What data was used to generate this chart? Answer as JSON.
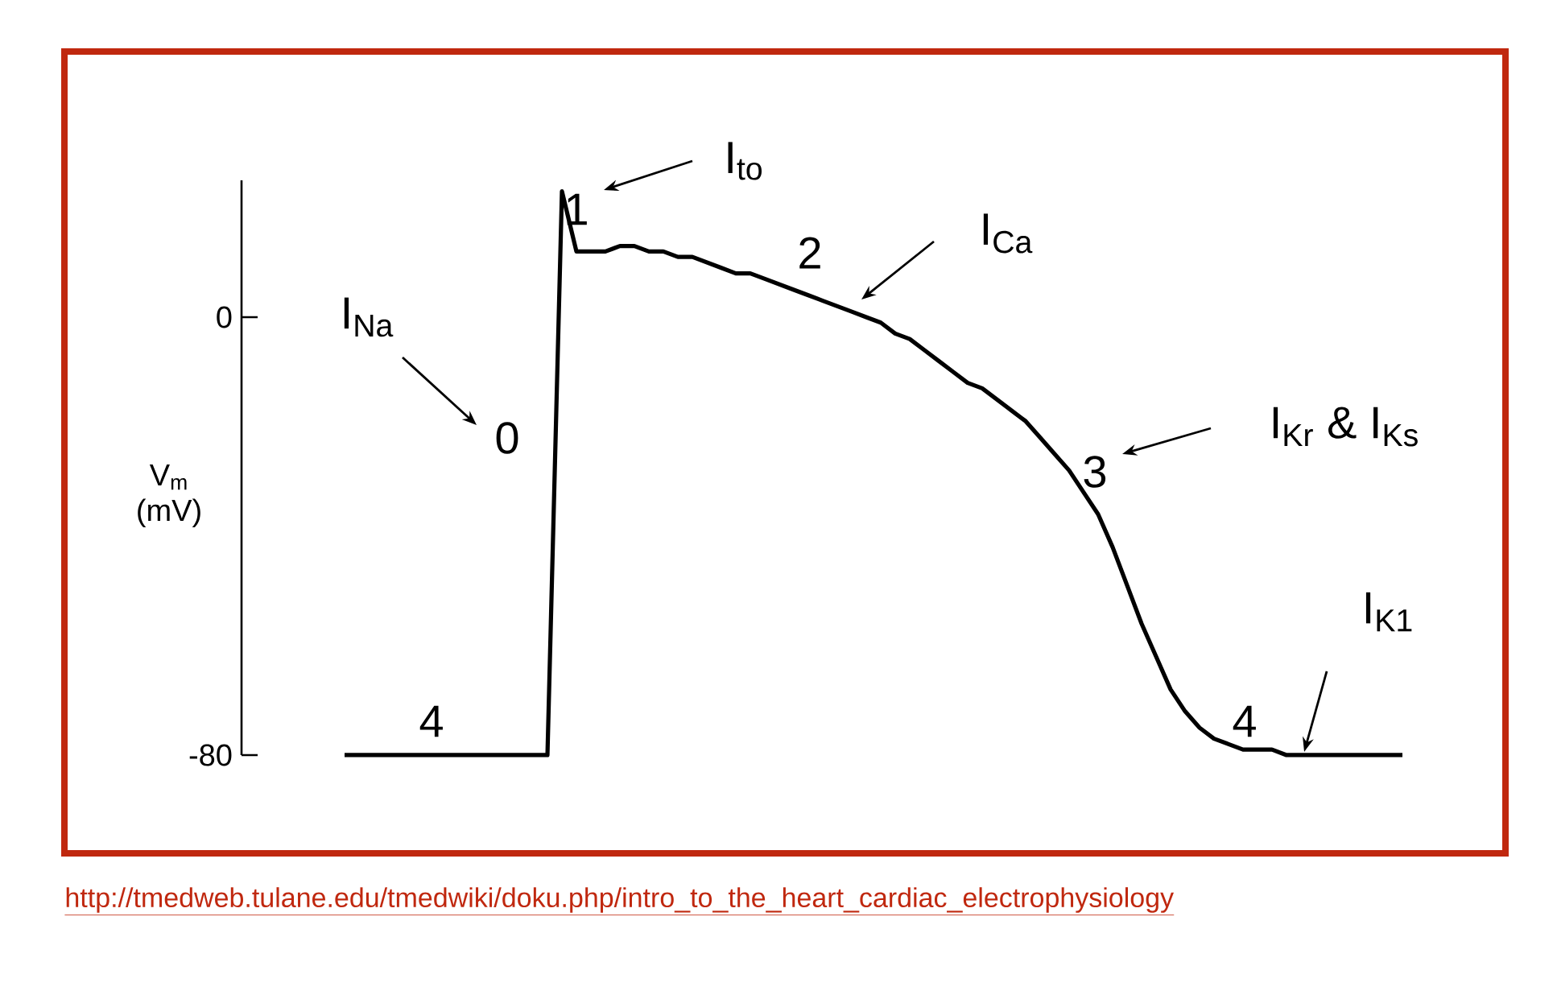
{
  "chart_data": {
    "type": "line",
    "categories": [
      null,
      null,
      null,
      null,
      null,
      null,
      null,
      null,
      null,
      null,
      null,
      null,
      null,
      null,
      null,
      null,
      null,
      null,
      null,
      null,
      null,
      null,
      null,
      null,
      null,
      null,
      null,
      null,
      null,
      null,
      null,
      null,
      null,
      null,
      null,
      null,
      null,
      null,
      null,
      null,
      null,
      null,
      null,
      null,
      null,
      null,
      null,
      null,
      null,
      null,
      null,
      null,
      null,
      null,
      null,
      null,
      null,
      null,
      null,
      null,
      null,
      null,
      null,
      null,
      null,
      null,
      null,
      null,
      null,
      null,
      null,
      null,
      null,
      null
    ],
    "values": [
      -80,
      -80,
      -80,
      -80,
      -80,
      -80,
      -80,
      -80,
      -80,
      -80,
      -80,
      -80,
      -80,
      -80,
      -80,
      23,
      12,
      12,
      12,
      13,
      13,
      12,
      12,
      11,
      11,
      10,
      9,
      8,
      8,
      7,
      6,
      5,
      4,
      3,
      2,
      1,
      0,
      -1,
      -3,
      -4,
      -6,
      -8,
      -10,
      -12,
      -13,
      -15,
      -17,
      -19,
      -22,
      -25,
      -28,
      -32,
      -36,
      -42,
      -49,
      -56,
      -62,
      -68,
      -72,
      -75,
      -77,
      -78,
      -79,
      -79,
      -79,
      -80,
      -80,
      -80,
      -80,
      -80,
      -80,
      -80,
      -80,
      -80
    ],
    "color": "#000000",
    "marker": "none",
    "ylabel": "V$_{m}$ (mV)",
    "ylim": [
      -80,
      25
    ],
    "yticks": [
      -80,
      0
    ],
    "tick_labels": "y",
    "annotations": [
      "I$_{Na}$",
      "0",
      "1",
      "I$_{to}$",
      "2",
      "I$_{Ca}$",
      "3",
      "I$_{Kr}$ & I$_{Ks}$",
      "4",
      "4",
      "I$_{K1}$",
      "http://tmedweb.tulane.edu/tmedwiki/doku.php/intro_to_the_heart_cardiac_electrophysiology"
    ]
  }
}
